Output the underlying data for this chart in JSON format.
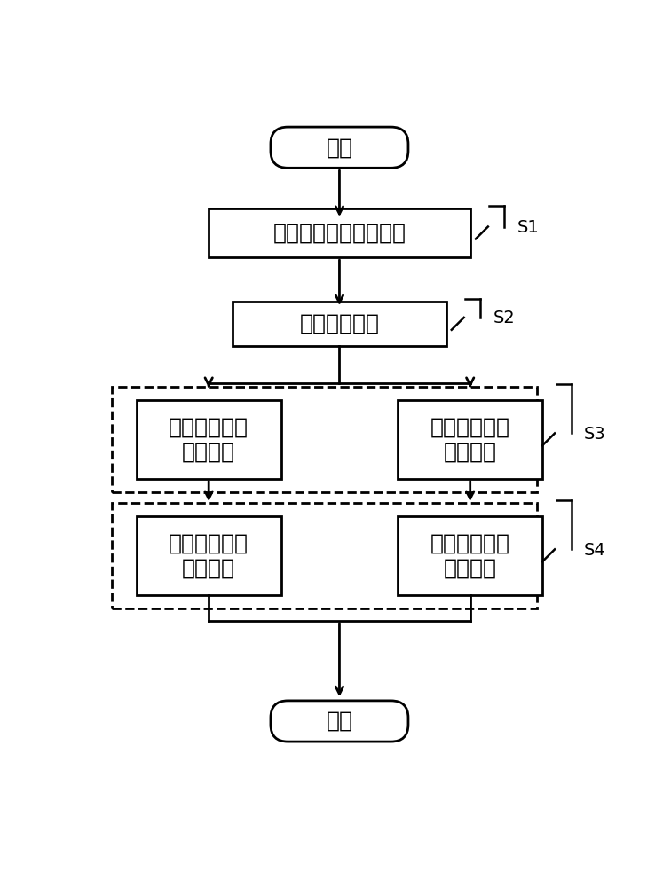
{
  "bg_color": "#ffffff",
  "line_color": "#000000",
  "text_color": "#000000",
  "font_size_main": 18,
  "font_size_label": 14,
  "start_text": "开始",
  "end_text": "结束",
  "s1_text": "运行数据获取及预处理",
  "s2_text": "风速区间划分",
  "s3_left_line1": "低风速段运行",
  "s3_left_line2": "区域划分",
  "s3_right_line1": "高风速段运行",
  "s3_right_line2": "区域划分",
  "s4_left_line1": "低风速段运行",
  "s4_left_line2": "状态判定",
  "s4_right_line1": "高风速段运行",
  "s4_right_line2": "状态判定",
  "label_s1": "S1",
  "label_s2": "S2",
  "label_s3": "S3",
  "label_s4": "S4",
  "figsize": [
    7.47,
    10.0
  ],
  "dpi": 100
}
